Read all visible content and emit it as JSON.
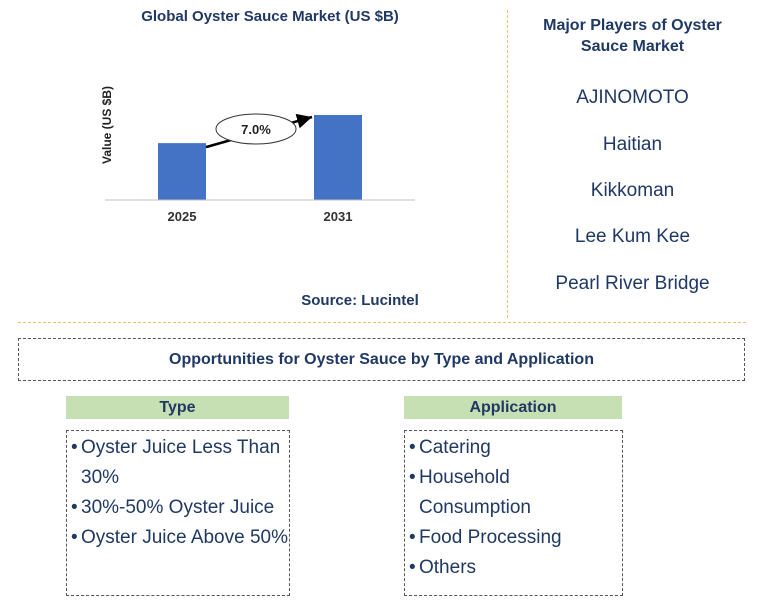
{
  "chart_data": {
    "type": "bar",
    "title": "Global Oyster Sauce Market (US $B)",
    "ylabel": "Value (US $B)",
    "xlabel": "",
    "categories": [
      "2025",
      "2031"
    ],
    "values": [
      0.87,
      1.3
    ],
    "growth_annotation": "7.0%",
    "source": "Source: Lucintel",
    "colors": {
      "bar": "#4472c4",
      "axis": "#bfbfbf",
      "arrow": "#000000"
    }
  },
  "players": {
    "title": "Major Players of Oyster Sauce Market",
    "items": [
      "AJINOMOTO",
      "Haitian",
      "Kikkoman",
      "Lee Kum Kee",
      "Pearl River Bridge"
    ]
  },
  "opportunities": {
    "title": "Opportunities for Oyster Sauce by Type and Application"
  },
  "type_segment": {
    "header": "Type",
    "items": [
      "Oyster Juice Less Than 30%",
      "30%-50% Oyster Juice",
      "Oyster Juice Above 50%"
    ]
  },
  "application_segment": {
    "header": "Application",
    "items": [
      "Catering",
      "Household Consumption",
      "Food Processing",
      "Others"
    ]
  }
}
